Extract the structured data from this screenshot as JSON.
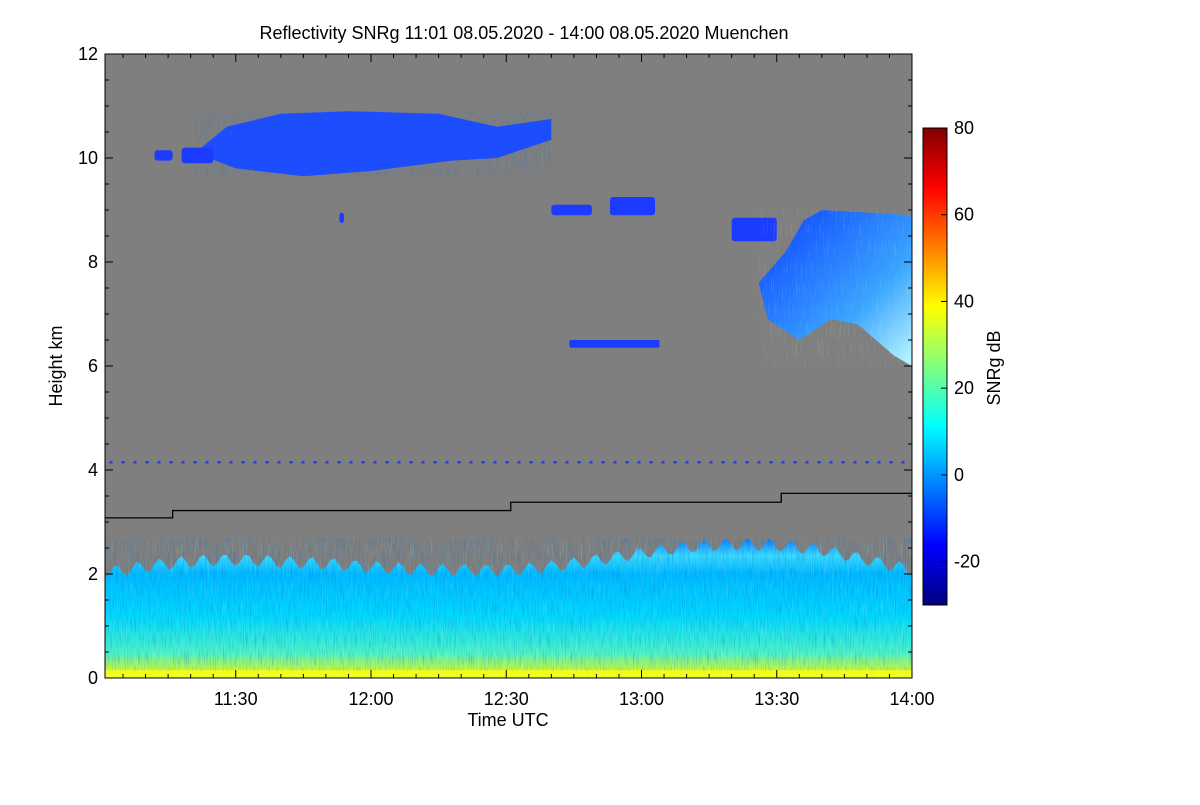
{
  "chart_data": {
    "type": "heatmap",
    "title": "Reflectivity SNRg   11:01 08.05.2020 - 14:00 08.05.2020 Muenchen",
    "xlabel": "Time UTC",
    "ylabel": "Height km",
    "colorbar_label": "SNRg dB",
    "xlim_minutes": [
      661,
      840
    ],
    "x_ticks": [
      {
        "minutes": 690,
        "label": "11:30"
      },
      {
        "minutes": 720,
        "label": "12:00"
      },
      {
        "minutes": 750,
        "label": "12:30"
      },
      {
        "minutes": 780,
        "label": "13:00"
      },
      {
        "minutes": 810,
        "label": "13:30"
      },
      {
        "minutes": 840,
        "label": "14:00"
      }
    ],
    "ylim": [
      0,
      12
    ],
    "y_ticks": [
      0,
      2,
      4,
      6,
      8,
      10,
      12
    ],
    "colorbar_range": [
      -30,
      80
    ],
    "colorbar_ticks": [
      -20,
      0,
      20,
      40,
      60,
      80
    ],
    "colormap": [
      "#00007f",
      "#0000ff",
      "#007fff",
      "#00ffff",
      "#7fff7f",
      "#ffff00",
      "#ff7f00",
      "#ff0000",
      "#7f0000"
    ],
    "missing_color": "#7f7f7f",
    "boundary_line": {
      "color": "#000000",
      "points": [
        [
          661,
          3.08
        ],
        [
          676,
          3.08
        ],
        [
          676,
          3.22
        ],
        [
          751,
          3.22
        ],
        [
          751,
          3.38
        ],
        [
          811,
          3.38
        ],
        [
          811,
          3.55
        ],
        [
          840,
          3.55
        ]
      ]
    },
    "echo_regions": [
      {
        "name": "boundary layer",
        "t0": 661,
        "t1": 840,
        "h_top": 2.3,
        "snr_min": -10,
        "snr_max": 35
      },
      {
        "name": "cirrus",
        "t0": 681,
        "t1": 760,
        "h_bottom": 9.6,
        "h_top": 10.9,
        "snr_min": -25,
        "snr_max": -10
      },
      {
        "name": "mid-level layer",
        "t0": 764,
        "t1": 784,
        "h_bottom": 6.35,
        "h_top": 6.5,
        "snr_min": -25,
        "snr_max": -15
      },
      {
        "name": "high cloud",
        "t0": 798,
        "t1": 840,
        "h_bottom": 6.0,
        "h_top": 9.0,
        "snr_min": -25,
        "snr_max": 10
      }
    ]
  }
}
